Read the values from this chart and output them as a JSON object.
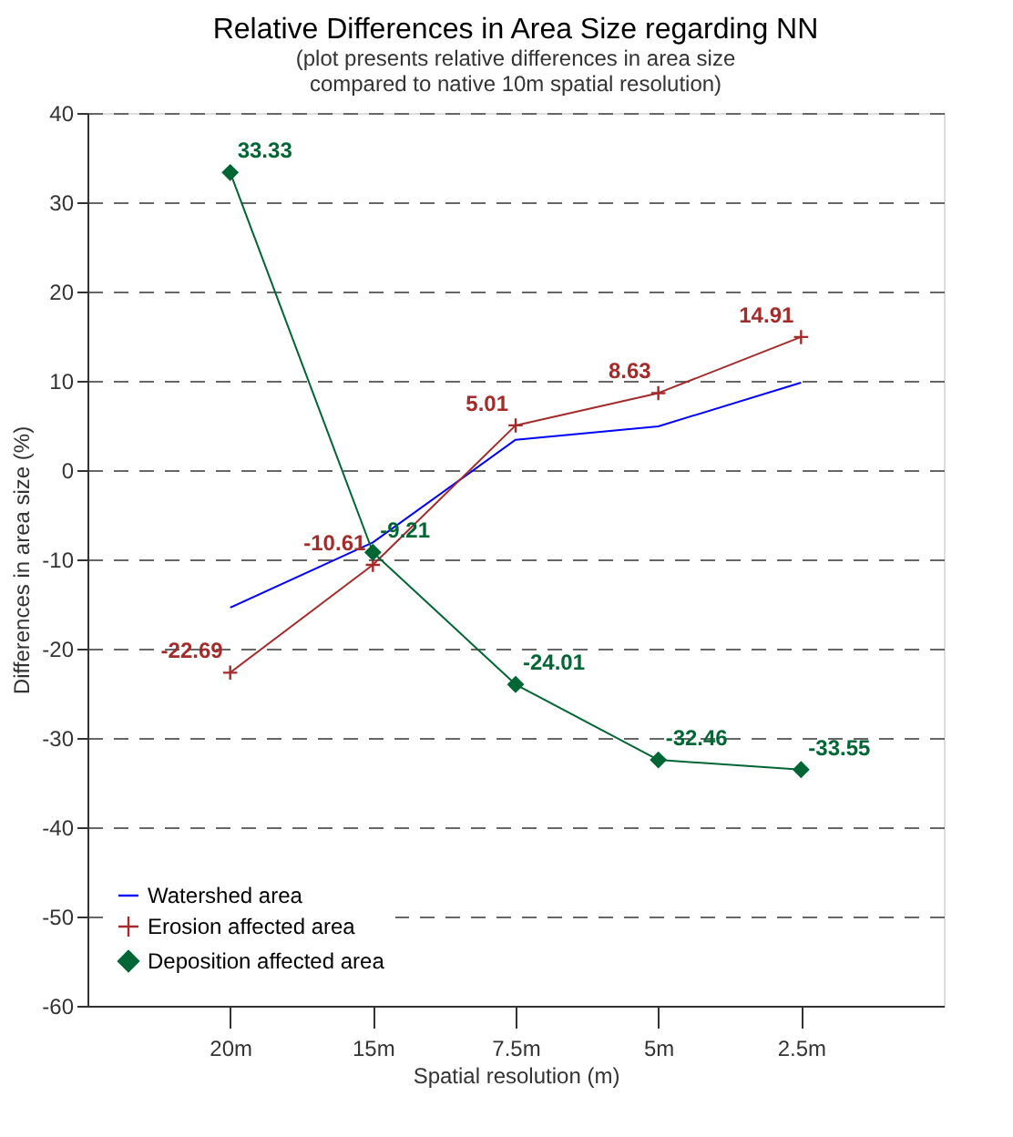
{
  "chart_data": {
    "type": "line",
    "title": "Relative Differences in Area Size regarding NN",
    "subtitle": "(plot presents relative differences in area size\ncompared to native 10m spatial resolution)",
    "xlabel": "Spatial resolution (m)",
    "ylabel": "Differences in area size (%)",
    "categories": [
      "20m",
      "15m",
      "7.5m",
      "5m",
      "2.5m"
    ],
    "series": [
      {
        "name": "Watershed area",
        "color": "#0000ff",
        "marker": "none",
        "values": [
          -15.4,
          -8.1,
          3.4,
          4.9,
          9.8
        ]
      },
      {
        "name": "Erosion affected area",
        "color": "#a52a2a",
        "marker": "cross",
        "values": [
          -22.69,
          -10.61,
          5.01,
          8.63,
          14.91
        ],
        "value_labels": [
          "-22.69",
          "-10.61",
          "5.01",
          "8.63",
          "14.91"
        ]
      },
      {
        "name": "Deposition affected area",
        "color": "#006633",
        "marker": "diamond",
        "values": [
          33.33,
          -9.21,
          -24.01,
          -32.46,
          -33.55
        ],
        "value_labels": [
          "33.33",
          "-9.21",
          "-24.01",
          "-32.46",
          "-33.55"
        ]
      }
    ],
    "ylim": [
      -60,
      40
    ],
    "yticks": [
      -60,
      -50,
      -40,
      -30,
      -20,
      -10,
      0,
      10,
      20,
      30,
      40
    ],
    "grid": "y",
    "legend": "bottom left",
    "line_style": "solid"
  }
}
